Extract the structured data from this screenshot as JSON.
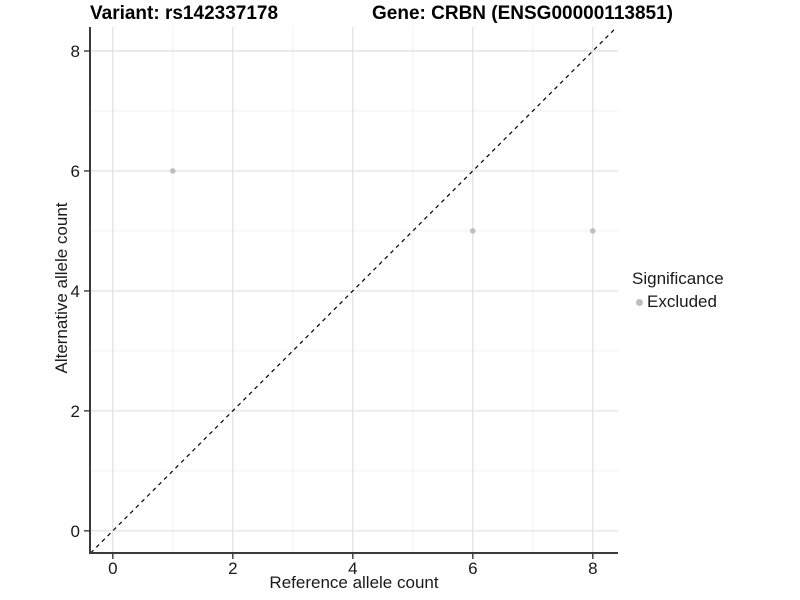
{
  "titles": {
    "variant": "Variant: rs142337178",
    "gene": "Gene: CRBN (ENSG00000113851)"
  },
  "colors": {
    "background": "#ffffff",
    "grid_major": "#e4e4e4",
    "grid_minor": "#f2f2f2",
    "axis_line": "#3a3a3a",
    "tick_label": "#1a1a1a",
    "point": "#bebebe",
    "reference_line": "#000000"
  },
  "chart_data": {
    "type": "scatter",
    "title_left": "Variant: rs142337178",
    "title_right": "Gene: CRBN (ENSG00000113851)",
    "xlabel": "Reference allele count",
    "ylabel": "Alternative allele count",
    "xlim": [
      -0.38,
      8.42
    ],
    "ylim": [
      -0.37,
      8.4
    ],
    "x_ticks": [
      0,
      2,
      4,
      6,
      8
    ],
    "y_ticks": [
      0,
      2,
      4,
      6,
      8
    ],
    "x_minor_ticks": [
      1,
      3,
      5,
      7
    ],
    "y_minor_ticks": [
      1,
      3,
      5,
      7
    ],
    "grid": true,
    "series": [
      {
        "name": "Excluded",
        "color": "#bebebe",
        "points": [
          [
            1,
            6
          ],
          [
            6,
            5
          ],
          [
            8,
            5
          ]
        ]
      }
    ],
    "reference_line": {
      "slope": 1,
      "intercept": 0,
      "style": "dashed",
      "color": "#000000"
    },
    "legend": {
      "position": "right",
      "title": "Significance",
      "items": [
        {
          "label": "Excluded",
          "color": "#bebebe"
        }
      ]
    }
  }
}
